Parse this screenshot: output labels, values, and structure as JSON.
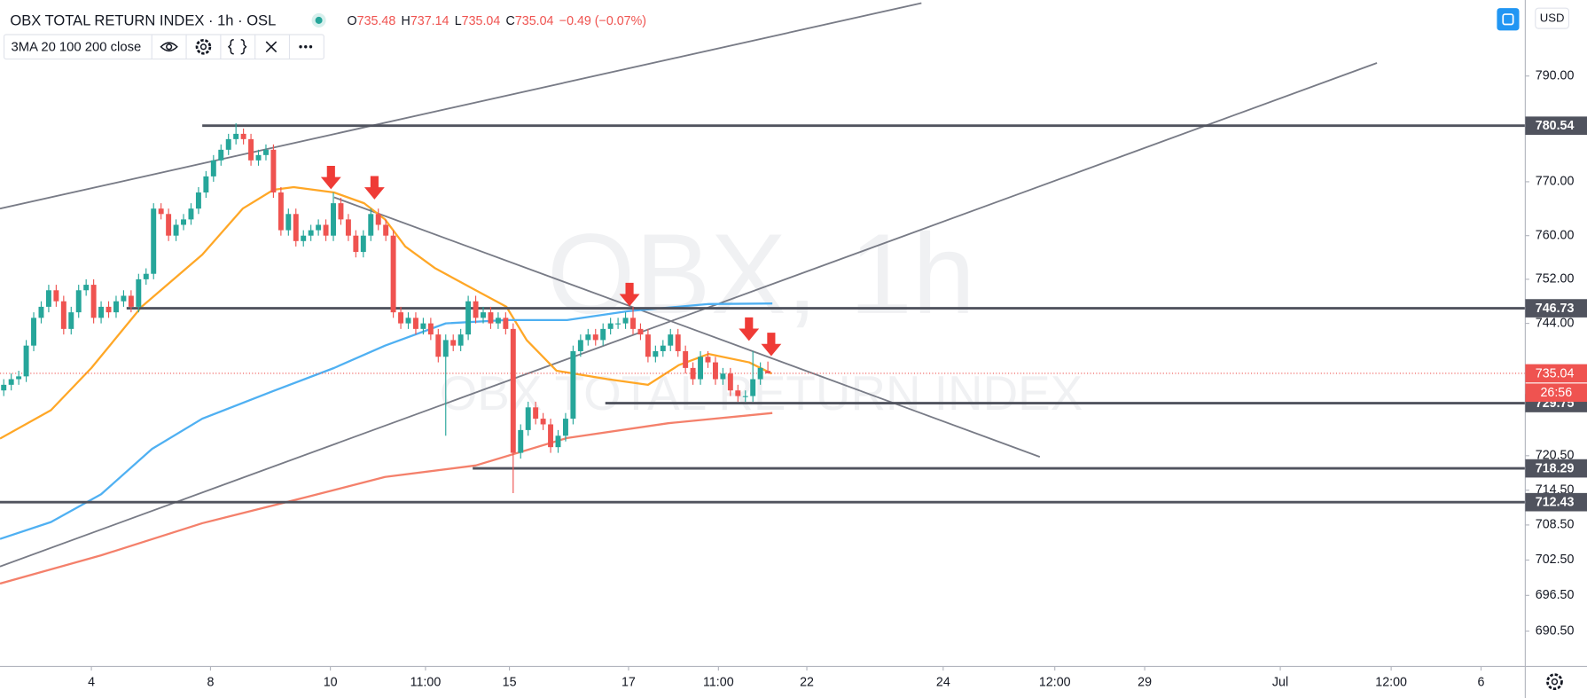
{
  "chart_data": {
    "type": "candlestick",
    "title": "OBX TOTAL RETURN INDEX · 1h · OSL",
    "ohlc_legend": {
      "labels": [
        "O",
        "H",
        "L",
        "C"
      ],
      "values": [
        "735.48",
        "737.14",
        "735.04",
        "735.04"
      ],
      "change": "−0.49 (−0.07%)"
    },
    "indicator": "3MA 20 100 200 close",
    "currency": "USD",
    "watermark": [
      "OBX, 1h",
      "OBX TOTAL RETURN INDEX"
    ],
    "colors": {
      "up": "#26a69a",
      "down": "#ef5350"
    },
    "open": [
      732,
      733,
      734,
      734.5,
      740,
      745,
      747,
      750,
      748,
      743,
      746,
      750,
      751,
      745,
      747,
      746,
      748,
      749,
      747,
      752,
      753,
      765,
      764,
      760,
      762,
      763,
      765,
      768,
      771,
      774,
      776,
      778,
      779,
      778,
      774,
      775,
      776,
      768,
      761,
      764,
      759,
      760,
      761,
      762,
      760,
      766,
      763,
      760,
      757,
      760,
      764,
      762,
      760,
      746,
      744,
      745,
      743,
      744,
      742,
      738,
      741,
      740,
      742,
      748,
      745,
      746,
      744,
      745,
      743,
      721,
      725,
      729,
      727,
      726,
      722,
      724,
      727,
      739,
      741,
      742,
      741,
      743,
      744,
      744,
      745,
      743,
      742,
      738,
      739,
      740,
      742,
      739,
      736,
      734,
      738,
      737,
      734,
      735,
      732,
      731,
      731,
      734,
      735.48
    ],
    "high": [
      734,
      735,
      735.5,
      741,
      746,
      748,
      751,
      751,
      749,
      747,
      751,
      752,
      752,
      748,
      748,
      749,
      750,
      750,
      753,
      754,
      766,
      766,
      765,
      763,
      764,
      766,
      769,
      772,
      775,
      777,
      779,
      781,
      780,
      779,
      776,
      777,
      777,
      769,
      765,
      765,
      761,
      762,
      763,
      763,
      768,
      767,
      764,
      761,
      761,
      765,
      765,
      763,
      761,
      747,
      746,
      746,
      745,
      745,
      743,
      742,
      742,
      743,
      749,
      749,
      747,
      747,
      746,
      746,
      744,
      726,
      730,
      730,
      728,
      727,
      725,
      728,
      740,
      742,
      743,
      743,
      744,
      745,
      745,
      746,
      747,
      744,
      743,
      740,
      741,
      743,
      743,
      740,
      737,
      739,
      739,
      738,
      736,
      736,
      733,
      732,
      739,
      737,
      737.14
    ],
    "low": [
      731,
      732,
      733,
      733.5,
      739,
      744,
      746,
      747,
      742,
      742,
      745,
      749,
      744,
      744,
      745,
      745,
      747,
      746,
      746,
      751,
      752,
      763,
      759,
      759,
      761,
      762,
      764,
      767,
      770,
      773,
      775,
      777,
      777,
      773,
      773,
      774,
      767,
      760,
      760,
      758,
      758,
      759,
      760,
      759,
      759,
      762,
      759,
      756,
      756,
      759,
      761,
      759,
      745,
      743,
      743,
      742,
      742,
      741,
      737,
      724,
      739,
      739,
      741,
      744,
      744,
      743,
      743,
      742,
      714,
      720,
      724,
      726,
      725,
      721,
      721,
      723,
      726,
      738,
      740,
      740,
      740,
      742,
      743,
      743,
      742,
      741,
      737,
      737,
      738,
      739,
      738,
      735,
      733,
      733,
      736,
      733,
      733,
      731,
      730,
      730,
      730,
      733,
      735.04
    ],
    "close": [
      733,
      734,
      734.5,
      740,
      745,
      747,
      750,
      748,
      743,
      746,
      750,
      751,
      745,
      747,
      746,
      748,
      749,
      747,
      752,
      753,
      765,
      764,
      760,
      762,
      763,
      765,
      768,
      771,
      774,
      776,
      778,
      779,
      778,
      774,
      775,
      776,
      768,
      761,
      764,
      759,
      760,
      761,
      762,
      760,
      766,
      763,
      760,
      757,
      760,
      764,
      762,
      760,
      746,
      744,
      745,
      743,
      744,
      742,
      738,
      741,
      740,
      742,
      748,
      745,
      746,
      744,
      745,
      743,
      721,
      725,
      729,
      727,
      726,
      722,
      724,
      727,
      739,
      741,
      742,
      741,
      743,
      744,
      744,
      745,
      743,
      742,
      738,
      739,
      740,
      742,
      739,
      736,
      734,
      738,
      737,
      734,
      735,
      732,
      731,
      731,
      734,
      736,
      735.04
    ],
    "series": [
      {
        "color": "#ffa726",
        "x": [
          -0.5,
          6.3,
          11.7,
          18.4,
          26.5,
          31.9,
          36,
          38.7,
          44.1,
          48.1,
          50.9,
          53.6,
          57.6,
          63,
          67.1,
          69.8,
          73.8,
          80.6,
          86,
          90.1,
          94.1,
          99.5,
          102.5
        ],
        "values": [
          723.5,
          728.5,
          736,
          747,
          756.5,
          765,
          768.5,
          769,
          768,
          766,
          763,
          758,
          754,
          750,
          747,
          741,
          735.5,
          734,
          733,
          736.5,
          738.5,
          737,
          735
        ]
      },
      {
        "color": "#4fb0f2",
        "x": [
          -0.5,
          6.3,
          13,
          19.8,
          26.5,
          36,
          44.1,
          50.9,
          59,
          67.1,
          75.2,
          83.3,
          94.1,
          102.6
        ],
        "values": [
          706.1,
          709,
          713.8,
          721.7,
          727,
          731.9,
          736,
          740,
          744,
          744.6,
          744.6,
          746.2,
          747.5,
          747.6
        ]
      },
      {
        "color": "#f4806b",
        "x": [
          -0.5,
          13,
          26.5,
          40.1,
          50.9,
          63,
          75.2,
          88.7,
          102.6
        ],
        "values": [
          698.5,
          703.3,
          708.8,
          713.2,
          716.8,
          718.8,
          723.6,
          726.2,
          728
        ]
      }
    ],
    "trendlines": [
      {
        "x": [
          -0.5,
          122.5
        ],
        "values": [
          765,
          804.1
        ]
      },
      {
        "x": [
          -0.5,
          183.3
        ],
        "values": [
          701.4,
          792.5
        ]
      },
      {
        "x": [
          44.1,
          138.3
        ],
        "values": [
          767.1,
          720.3
        ]
      }
    ],
    "levels": [
      {
        "value": 780.54,
        "label": "780.54",
        "from": 26.5
      },
      {
        "value": 746.73,
        "label": "746.73",
        "from": 16.4
      },
      {
        "value": 729.75,
        "label": "729.75",
        "from": 80.3
      },
      {
        "value": 718.29,
        "label": "718.29",
        "from": 62.6
      },
      {
        "value": 712.43,
        "label": "712.43",
        "from": -0.5
      }
    ],
    "last_price": {
      "value": 735.04,
      "label": "735.04",
      "countdown": "26:56",
      "color": "#ef5350"
    },
    "xlim": [
      -0.5,
      203.1
    ],
    "xticks": [
      {
        "value": 11.7,
        "label": "4"
      },
      {
        "value": 27.6,
        "label": "8"
      },
      {
        "value": 43.6,
        "label": "10"
      },
      {
        "value": 56.3,
        "label": "11:00"
      },
      {
        "value": 67.5,
        "label": "15"
      },
      {
        "value": 83.4,
        "label": "17"
      },
      {
        "value": 95.4,
        "label": "11:00"
      },
      {
        "value": 107.2,
        "label": "22"
      },
      {
        "value": 125.4,
        "label": "24"
      },
      {
        "value": 140.3,
        "label": "12:00"
      },
      {
        "value": 152.3,
        "label": "29"
      },
      {
        "value": 170.4,
        "label": "Jul"
      },
      {
        "value": 185.2,
        "label": "12:00"
      },
      {
        "value": 197.2,
        "label": "6"
      }
    ],
    "ylim": [
      684.6,
      804.7
    ],
    "log_scale": true,
    "grid": false,
    "yticks": [
      {
        "value": 790,
        "label": "790.00"
      },
      {
        "value": 770,
        "label": "770.00"
      },
      {
        "value": 760,
        "label": "760.00"
      },
      {
        "value": 752,
        "label": "752.00"
      },
      {
        "value": 744,
        "label": "744.00"
      },
      {
        "value": 720.5,
        "label": "720.50"
      },
      {
        "value": 714.5,
        "label": "714.50"
      },
      {
        "value": 708.5,
        "label": "708.50"
      },
      {
        "value": 702.5,
        "label": "702.50"
      },
      {
        "value": 696.5,
        "label": "696.50"
      },
      {
        "value": 690.5,
        "label": "690.50"
      }
    ]
  }
}
